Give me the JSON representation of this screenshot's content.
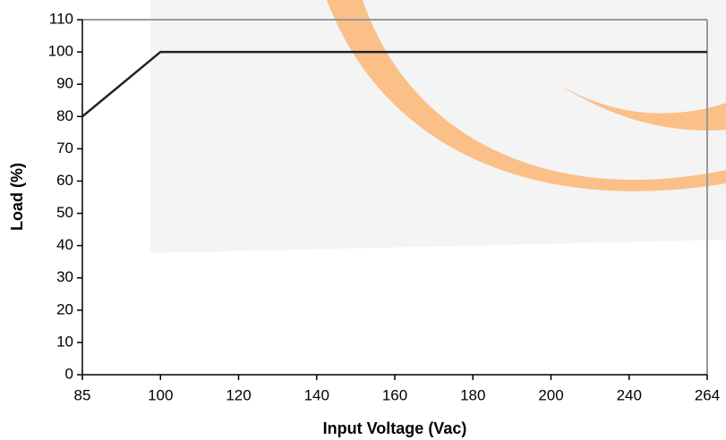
{
  "chart_data": {
    "type": "line",
    "x_label": "Input Voltage (Vac)",
    "y_label": "Load (%)",
    "categories": [
      "85",
      "100",
      "120",
      "140",
      "160",
      "180",
      "200",
      "240",
      "264"
    ],
    "series": [
      {
        "name": "Load",
        "color": "#222222",
        "values": [
          80,
          100,
          100,
          100,
          100,
          100,
          100,
          100,
          100
        ]
      }
    ],
    "ylim": [
      0,
      110
    ],
    "yticks": [
      0,
      10,
      20,
      30,
      40,
      50,
      60,
      70,
      80,
      90,
      100,
      110
    ]
  }
}
